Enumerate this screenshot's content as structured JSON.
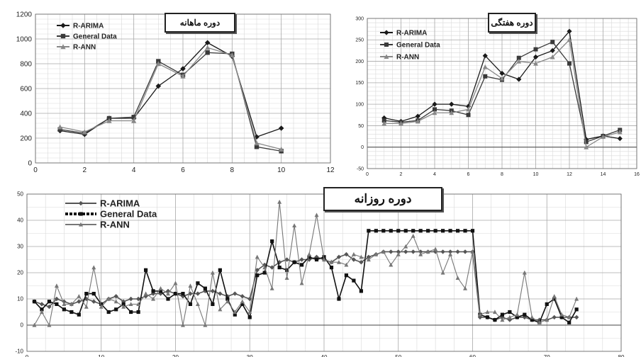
{
  "chart_data": [
    {
      "id": "monthly",
      "type": "line",
      "title": "دوره ماهانه",
      "xlim": [
        0,
        12
      ],
      "ylim": [
        0,
        1200
      ],
      "xticks": [
        0,
        2,
        4,
        6,
        8,
        10,
        12
      ],
      "yticks": [
        0,
        200,
        400,
        600,
        800,
        1000,
        1200
      ],
      "grid": true,
      "legend_position": "top-left",
      "series": [
        {
          "name": "R-ARIMA",
          "color": "#1a1a1a",
          "marker": "diamond",
          "x": [
            1,
            2,
            3,
            4,
            5,
            6,
            7,
            8,
            9,
            10
          ],
          "y": [
            260,
            230,
            360,
            360,
            620,
            760,
            970,
            860,
            210,
            280
          ]
        },
        {
          "name": "General Data",
          "color": "#3a3a3a",
          "marker": "square",
          "x": [
            1,
            2,
            3,
            4,
            5,
            6,
            7,
            8,
            9,
            10
          ],
          "y": [
            270,
            240,
            360,
            370,
            820,
            710,
            890,
            880,
            130,
            95
          ]
        },
        {
          "name": "R-ANN",
          "color": "#888888",
          "marker": "triangle",
          "x": [
            1,
            2,
            3,
            4,
            5,
            6,
            7,
            8,
            9,
            10
          ],
          "y": [
            290,
            250,
            340,
            340,
            800,
            700,
            930,
            870,
            160,
            110
          ]
        }
      ]
    },
    {
      "id": "weekly",
      "type": "line",
      "title": "دوره هفتگی",
      "xlim": [
        0,
        16
      ],
      "ylim": [
        -50,
        300
      ],
      "xticks": [
        0,
        2,
        4,
        6,
        8,
        10,
        12,
        14,
        16
      ],
      "yticks": [
        -50,
        0,
        50,
        100,
        150,
        200,
        250,
        300
      ],
      "grid": true,
      "legend_position": "top-left",
      "series": [
        {
          "name": "R-ARIMA",
          "color": "#1a1a1a",
          "marker": "diamond",
          "x": [
            1,
            2,
            3,
            4,
            5,
            6,
            7,
            8,
            9,
            10,
            11,
            12,
            13,
            14,
            15
          ],
          "y": [
            68,
            60,
            72,
            100,
            100,
            95,
            213,
            172,
            158,
            210,
            225,
            270,
            18,
            26,
            20
          ]
        },
        {
          "name": "General Data",
          "color": "#3a3a3a",
          "marker": "square",
          "x": [
            1,
            2,
            3,
            4,
            5,
            6,
            7,
            8,
            9,
            10,
            11,
            12,
            13,
            14,
            15
          ],
          "y": [
            62,
            58,
            62,
            88,
            85,
            75,
            165,
            157,
            208,
            228,
            245,
            195,
            12,
            26,
            40
          ]
        },
        {
          "name": "R-ANN",
          "color": "#888888",
          "marker": "triangle",
          "x": [
            1,
            2,
            3,
            4,
            5,
            6,
            7,
            8,
            9,
            10,
            11,
            12,
            13,
            14,
            15
          ],
          "y": [
            55,
            55,
            60,
            80,
            80,
            88,
            187,
            160,
            200,
            195,
            210,
            250,
            0,
            24,
            35
          ]
        }
      ]
    },
    {
      "id": "daily",
      "type": "line",
      "title": "دوره روزانه",
      "xlim": [
        0,
        80
      ],
      "ylim": [
        -10,
        50
      ],
      "xticks": [
        0,
        10,
        20,
        30,
        40,
        50,
        60,
        70,
        80
      ],
      "yticks": [
        -10,
        0,
        10,
        20,
        30,
        40,
        50
      ],
      "grid": true,
      "legend_position": "top-left",
      "series": [
        {
          "name": "R-ARIMA",
          "color": "#555555",
          "marker": "diamond",
          "x": [
            1,
            2,
            3,
            4,
            5,
            6,
            7,
            8,
            9,
            10,
            11,
            12,
            13,
            14,
            15,
            16,
            17,
            18,
            19,
            20,
            21,
            22,
            23,
            24,
            25,
            26,
            27,
            28,
            29,
            30,
            31,
            32,
            33,
            34,
            35,
            36,
            37,
            38,
            39,
            40,
            41,
            42,
            43,
            44,
            45,
            46,
            47,
            48,
            49,
            50,
            51,
            52,
            53,
            54,
            55,
            56,
            57,
            58,
            59,
            60,
            61,
            62,
            63,
            64,
            65,
            66,
            67,
            68,
            69,
            70,
            71,
            72,
            73,
            74
          ],
          "y": [
            9,
            8,
            7,
            10,
            9,
            8,
            9,
            10,
            9,
            8,
            10,
            11,
            9,
            10,
            10,
            11,
            12,
            12,
            13,
            12,
            11,
            12,
            12,
            13,
            13,
            12,
            11,
            12,
            11,
            10,
            21,
            23,
            22,
            24,
            25,
            24,
            25,
            25,
            26,
            25,
            24,
            26,
            27,
            25,
            24,
            26,
            27,
            28,
            28,
            28,
            28,
            28,
            28,
            28,
            28,
            28,
            28,
            28,
            28,
            28,
            3,
            3,
            2,
            3,
            2,
            3,
            3,
            2,
            2,
            2,
            3,
            3,
            3,
            3
          ]
        },
        {
          "name": "General Data",
          "color": "#111111",
          "marker": "square",
          "x": [
            1,
            2,
            3,
            4,
            5,
            6,
            7,
            8,
            9,
            10,
            11,
            12,
            13,
            14,
            15,
            16,
            17,
            18,
            19,
            20,
            21,
            22,
            23,
            24,
            25,
            26,
            27,
            28,
            29,
            30,
            31,
            32,
            33,
            34,
            35,
            36,
            37,
            38,
            39,
            40,
            41,
            42,
            43,
            44,
            45,
            46,
            47,
            48,
            49,
            50,
            51,
            52,
            53,
            54,
            55,
            56,
            57,
            58,
            59,
            60,
            61,
            62,
            63,
            64,
            65,
            66,
            67,
            68,
            69,
            70,
            71,
            72,
            73,
            74
          ],
          "y": [
            9,
            6,
            9,
            8,
            6,
            5,
            4,
            12,
            12,
            8,
            5,
            6,
            8,
            5,
            5,
            21,
            13,
            13,
            10,
            12,
            12,
            8,
            16,
            14,
            8,
            21,
            10,
            4,
            8,
            3,
            19,
            20,
            32,
            22,
            21,
            24,
            23,
            26,
            25,
            26,
            22,
            10,
            19,
            17,
            13,
            36,
            36,
            36,
            36,
            36,
            36,
            36,
            36,
            36,
            36,
            36,
            36,
            36,
            36,
            36,
            4,
            3,
            2,
            4,
            5,
            3,
            4,
            2,
            1,
            8,
            10,
            3,
            1,
            6
          ]
        },
        {
          "name": "R-ANN",
          "color": "#777777",
          "marker": "triangle",
          "x": [
            1,
            2,
            3,
            4,
            5,
            6,
            7,
            8,
            9,
            10,
            11,
            12,
            13,
            14,
            15,
            16,
            17,
            18,
            19,
            20,
            21,
            22,
            23,
            24,
            25,
            26,
            27,
            28,
            29,
            30,
            31,
            32,
            33,
            34,
            35,
            36,
            37,
            38,
            39,
            40,
            41,
            42,
            43,
            44,
            45,
            46,
            47,
            48,
            49,
            50,
            51,
            52,
            53,
            54,
            55,
            56,
            57,
            58,
            59,
            60,
            61,
            62,
            63,
            64,
            65,
            66,
            67,
            68,
            69,
            70,
            71,
            72,
            73,
            74
          ],
          "y": [
            0,
            5,
            0,
            15,
            8,
            8,
            11,
            7,
            22,
            7,
            10,
            9,
            7,
            8,
            8,
            12,
            10,
            14,
            12,
            16,
            0,
            15,
            8,
            0,
            20,
            6,
            9,
            5,
            9,
            5,
            26,
            22,
            14,
            47,
            18,
            38,
            16,
            27,
            42,
            25,
            24,
            24,
            23,
            27,
            26,
            25,
            27,
            28,
            23,
            27,
            30,
            34,
            27,
            28,
            29,
            20,
            27,
            18,
            14,
            28,
            4,
            5,
            5,
            2,
            3,
            4,
            20,
            3,
            1,
            2,
            11,
            4,
            3,
            10
          ]
        }
      ]
    }
  ]
}
